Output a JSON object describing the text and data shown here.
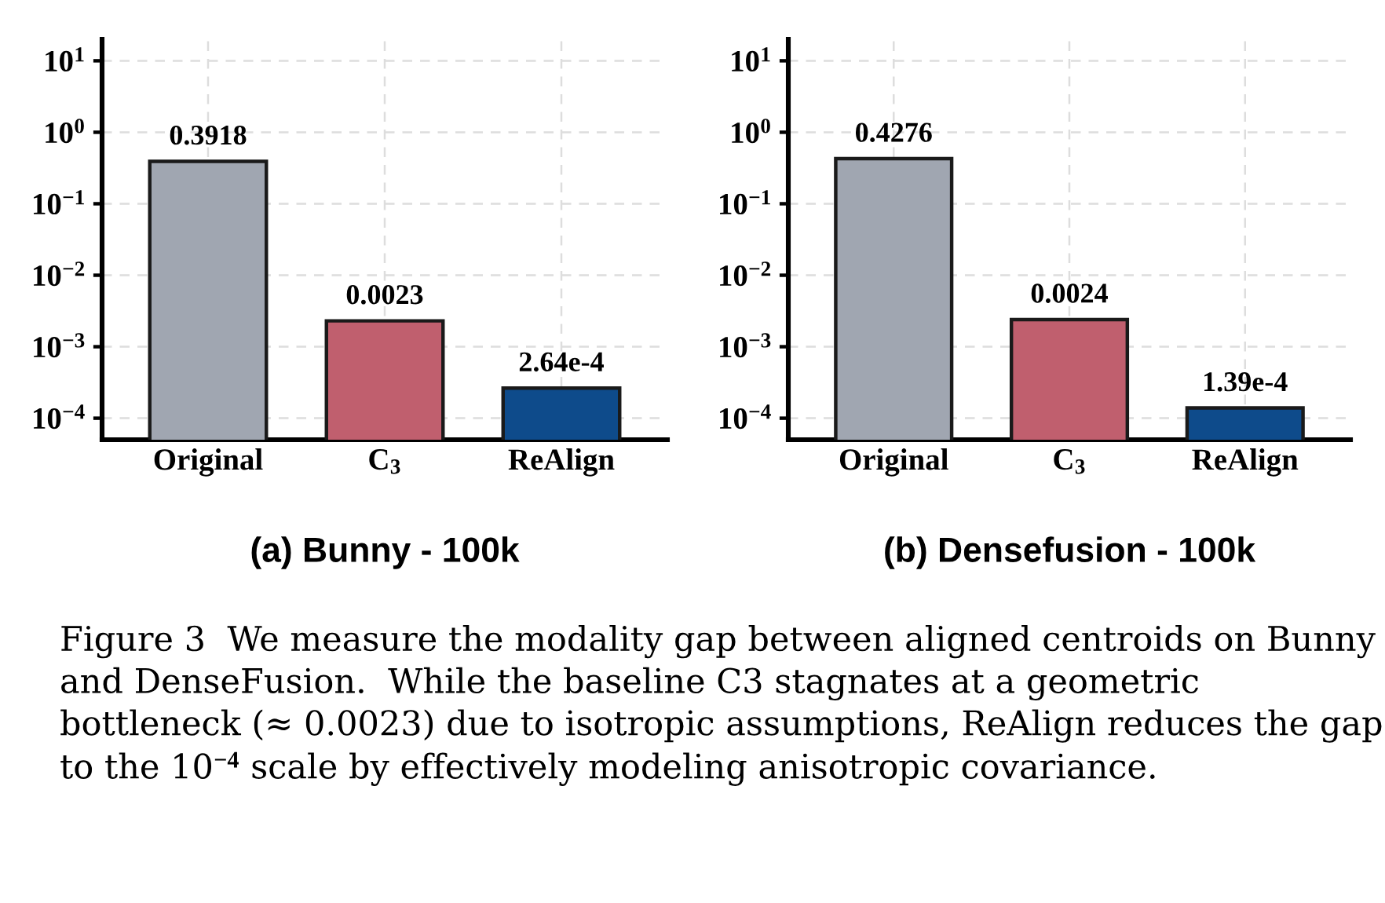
{
  "chart_data": [
    {
      "type": "bar",
      "title": "(a) Bunny - 100k",
      "categories": [
        "Original",
        "C$_{3}$",
        "ReAlign"
      ],
      "values": [
        0.3918,
        0.0023,
        0.000264
      ],
      "colors": [
        "#a0a6b1",
        "#c05f6e",
        "#0e4b8b"
      ],
      "value_labels": [
        "0.3918",
        "0.0023",
        "2.64e-4"
      ],
      "log": "y",
      "ylim": [
        5e-05,
        20
      ],
      "yticks": [
        {
          "value": 0.0001,
          "label": "10$^{−4}$"
        },
        {
          "value": 0.001,
          "label": "10$^{−3}$"
        },
        {
          "value": 0.01,
          "label": "10$^{−2}$"
        },
        {
          "value": 0.1,
          "label": "10$^{−1}$"
        },
        {
          "value": 1,
          "label": "10$^{0}$"
        },
        {
          "value": 10,
          "label": "10$^{1}$"
        }
      ],
      "grid": true
    },
    {
      "type": "bar",
      "title": "(b) Densefusion - 100k",
      "categories": [
        "Original",
        "C$_{3}$",
        "ReAlign"
      ],
      "values": [
        0.4276,
        0.0024,
        0.000139
      ],
      "colors": [
        "#a0a6b1",
        "#c05f6e",
        "#0e4b8b"
      ],
      "value_labels": [
        "0.4276",
        "0.0024",
        "1.39e-4"
      ],
      "log": "y",
      "ylim": [
        5e-05,
        20
      ],
      "yticks": [
        {
          "value": 0.0001,
          "label": "10$^{−4}$"
        },
        {
          "value": 0.001,
          "label": "10$^{−3}$"
        },
        {
          "value": 0.01,
          "label": "10$^{−2}$"
        },
        {
          "value": 0.1,
          "label": "10$^{−1}$"
        },
        {
          "value": 1,
          "label": "10$^{0}$"
        },
        {
          "value": 10,
          "label": "10$^{1}$"
        }
      ],
      "grid": true,
      "annotations": [
        "Figure 3  We measure the modality gap between aligned centroids on Bunny and DenseFusion.  While the baseline C3 stagnates at a geometric bottleneck (≈ 0.0023) due to isotropic assumptions, ReAlign reduces the gap to the 10$^{−4}$ scale by effectively modeling anisotropic covariance."
      ]
    }
  ]
}
